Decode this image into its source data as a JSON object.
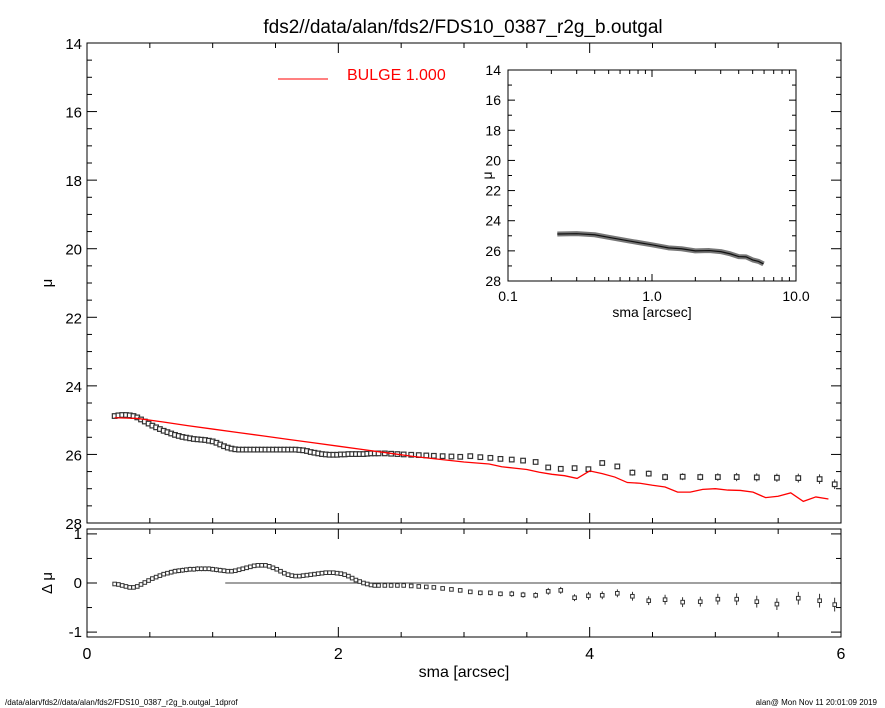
{
  "chart_data": [
    {
      "panel": "main",
      "type": "scatter",
      "title": "fds2//data/alan/fds2/FDS10_0387_r2g_b.outgal",
      "xlabel": "",
      "ylabel": "μ",
      "xlim": [
        0,
        6
      ],
      "ylim": [
        28,
        14
      ],
      "y_axis_inverted": true,
      "yticks": [
        "14",
        "16",
        "18",
        "20",
        "22",
        "24",
        "26",
        "28"
      ],
      "legend": {
        "label": "BULGE  1.000",
        "color": "#ff0000",
        "position": "top-center"
      },
      "series": [
        {
          "marker": "square",
          "color": "#000000",
          "x": [
            0.22,
            0.25,
            0.28,
            0.31,
            0.34,
            0.37,
            0.4,
            0.43,
            0.46,
            0.49,
            0.52,
            0.55,
            0.58,
            0.61,
            0.64,
            0.67,
            0.7,
            0.73,
            0.76,
            0.79,
            0.82,
            0.85,
            0.88,
            0.91,
            0.94,
            0.97,
            1.0,
            1.03,
            1.06,
            1.09,
            1.12,
            1.15,
            1.18,
            1.21,
            1.24,
            1.27,
            1.3,
            1.33,
            1.36,
            1.39,
            1.42,
            1.45,
            1.48,
            1.51,
            1.54,
            1.57,
            1.6,
            1.63,
            1.66,
            1.69,
            1.72,
            1.75,
            1.78,
            1.81,
            1.84,
            1.87,
            1.9,
            1.93,
            1.96,
            1.99,
            2.02,
            2.05,
            2.08,
            2.11,
            2.14,
            2.17,
            2.2,
            2.23,
            2.26,
            2.29,
            2.32,
            2.37,
            2.42,
            2.47,
            2.52,
            2.58,
            2.64,
            2.7,
            2.76,
            2.83,
            2.9,
            2.97,
            3.05,
            3.13,
            3.21,
            3.29,
            3.38,
            3.47,
            3.57,
            3.67,
            3.77,
            3.88,
            3.99,
            4.1,
            4.22,
            4.34,
            4.47,
            4.6,
            4.74,
            4.88,
            5.02,
            5.17,
            5.33,
            5.49,
            5.66,
            5.83,
            5.95
          ],
          "y": [
            24.88,
            24.86,
            24.85,
            24.85,
            24.86,
            24.88,
            24.92,
            24.98,
            25.04,
            25.1,
            25.16,
            25.21,
            25.26,
            25.31,
            25.35,
            25.39,
            25.43,
            25.46,
            25.49,
            25.51,
            25.53,
            25.55,
            25.56,
            25.57,
            25.58,
            25.6,
            25.62,
            25.66,
            25.71,
            25.76,
            25.8,
            25.83,
            25.85,
            25.86,
            25.86,
            25.86,
            25.86,
            25.86,
            25.86,
            25.86,
            25.86,
            25.86,
            25.86,
            25.86,
            25.86,
            25.86,
            25.86,
            25.86,
            25.86,
            25.87,
            25.88,
            25.9,
            25.93,
            25.95,
            25.97,
            25.99,
            26.0,
            26.01,
            26.01,
            26.01,
            26.0,
            26.0,
            25.99,
            25.99,
            25.99,
            25.99,
            25.99,
            25.98,
            25.97,
            25.97,
            25.97,
            25.97,
            25.98,
            25.99,
            26.0,
            26.01,
            26.02,
            26.03,
            26.04,
            26.05,
            26.06,
            26.07,
            26.05,
            26.08,
            26.1,
            26.13,
            26.15,
            26.18,
            26.22,
            26.38,
            26.42,
            26.4,
            26.43,
            26.25,
            26.35,
            26.53,
            26.56,
            26.66,
            26.65,
            26.66,
            26.66,
            26.66,
            26.67,
            26.68,
            26.69,
            26.72,
            26.87
          ],
          "err": [
            0.02,
            0.02,
            0.02,
            0.02,
            0.02,
            0.02,
            0.02,
            0.02,
            0.02,
            0.02,
            0.02,
            0.02,
            0.02,
            0.02,
            0.02,
            0.02,
            0.02,
            0.02,
            0.02,
            0.02,
            0.02,
            0.02,
            0.02,
            0.02,
            0.02,
            0.02,
            0.02,
            0.02,
            0.02,
            0.02,
            0.02,
            0.02,
            0.02,
            0.02,
            0.02,
            0.02,
            0.02,
            0.02,
            0.02,
            0.02,
            0.02,
            0.02,
            0.02,
            0.02,
            0.02,
            0.02,
            0.02,
            0.02,
            0.02,
            0.02,
            0.02,
            0.02,
            0.02,
            0.02,
            0.02,
            0.02,
            0.02,
            0.02,
            0.02,
            0.02,
            0.02,
            0.02,
            0.02,
            0.02,
            0.02,
            0.02,
            0.02,
            0.02,
            0.02,
            0.02,
            0.02,
            0.03,
            0.03,
            0.03,
            0.03,
            0.03,
            0.03,
            0.03,
            0.03,
            0.04,
            0.04,
            0.04,
            0.04,
            0.05,
            0.05,
            0.05,
            0.06,
            0.06,
            0.06,
            0.07,
            0.07,
            0.07,
            0.08,
            0.08,
            0.08,
            0.09,
            0.09,
            0.1,
            0.1,
            0.1,
            0.11,
            0.12,
            0.12,
            0.12,
            0.13,
            0.14,
            0.14
          ]
        },
        {
          "name": "BULGE  1.000",
          "marker": "line",
          "color": "#ff0000",
          "x": [
            0.22,
            0.4,
            0.6,
            0.8,
            1.0,
            1.2,
            1.4,
            1.6,
            1.8,
            2.0,
            2.2,
            2.4,
            2.6,
            2.8,
            3.0,
            3.2,
            3.3,
            3.4,
            3.5,
            3.6,
            3.7,
            3.8,
            3.9,
            4.0,
            4.1,
            4.2,
            4.3,
            4.4,
            4.5,
            4.6,
            4.7,
            4.8,
            4.9,
            5.0,
            5.1,
            5.2,
            5.3,
            5.4,
            5.5,
            5.6,
            5.7,
            5.8,
            5.9
          ],
          "y": [
            24.93,
            24.95,
            25.05,
            25.16,
            25.26,
            25.36,
            25.46,
            25.56,
            25.66,
            25.76,
            25.86,
            25.96,
            26.06,
            26.14,
            26.22,
            26.28,
            26.36,
            26.4,
            26.44,
            26.52,
            26.58,
            26.62,
            26.7,
            26.48,
            26.56,
            26.66,
            26.82,
            26.84,
            26.9,
            26.95,
            27.1,
            27.1,
            27.02,
            27.0,
            27.04,
            27.05,
            27.1,
            27.26,
            27.22,
            27.12,
            27.37,
            27.24,
            27.3
          ]
        }
      ]
    },
    {
      "panel": "inset",
      "type": "line",
      "xlabel": "sma [arcsec]",
      "ylabel": "μ",
      "x_scale": "log",
      "xlim": [
        0.1,
        10.0
      ],
      "ylim": [
        28,
        14
      ],
      "y_axis_inverted": true,
      "xticks": [
        "0.1",
        "1.0",
        "10.0"
      ],
      "yticks": [
        "14",
        "16",
        "18",
        "20",
        "22",
        "24",
        "26",
        "28"
      ],
      "series": [
        {
          "marker": "line",
          "color": "#000000",
          "x": [
            0.22,
            0.3,
            0.4,
            0.5,
            0.7,
            1.0,
            1.3,
            1.6,
            2.0,
            2.5,
            3.0,
            3.5,
            4.0,
            4.5,
            5.0,
            5.5,
            5.95
          ],
          "y": [
            24.88,
            24.86,
            24.93,
            25.1,
            25.35,
            25.6,
            25.8,
            25.86,
            26.0,
            25.98,
            26.05,
            26.2,
            26.38,
            26.4,
            26.6,
            26.7,
            26.87
          ]
        }
      ]
    },
    {
      "panel": "residual",
      "type": "scatter",
      "xlabel": "sma [arcsec]",
      "ylabel": "Δ μ",
      "xlim": [
        0,
        6
      ],
      "ylim": [
        -1.1,
        1.1
      ],
      "xticks": [
        "0",
        "2",
        "4",
        "6"
      ],
      "yticks": [
        "1",
        "0",
        "-1"
      ],
      "series": [
        {
          "marker": "square",
          "color": "#000000",
          "x": [
            0.22,
            0.25,
            0.28,
            0.31,
            0.34,
            0.37,
            0.4,
            0.43,
            0.46,
            0.49,
            0.52,
            0.55,
            0.58,
            0.61,
            0.64,
            0.67,
            0.7,
            0.73,
            0.76,
            0.79,
            0.82,
            0.85,
            0.88,
            0.91,
            0.94,
            0.97,
            1.0,
            1.03,
            1.06,
            1.09,
            1.12,
            1.15,
            1.18,
            1.21,
            1.24,
            1.27,
            1.3,
            1.33,
            1.36,
            1.39,
            1.42,
            1.45,
            1.48,
            1.51,
            1.54,
            1.57,
            1.6,
            1.63,
            1.66,
            1.69,
            1.72,
            1.75,
            1.78,
            1.81,
            1.84,
            1.87,
            1.9,
            1.93,
            1.96,
            1.99,
            2.02,
            2.05,
            2.08,
            2.11,
            2.14,
            2.17,
            2.2,
            2.23,
            2.26,
            2.29,
            2.32,
            2.37,
            2.42,
            2.47,
            2.52,
            2.58,
            2.64,
            2.7,
            2.76,
            2.83,
            2.9,
            2.97,
            3.05,
            3.13,
            3.21,
            3.29,
            3.38,
            3.47,
            3.57,
            3.67,
            3.77,
            3.88,
            3.99,
            4.1,
            4.22,
            4.34,
            4.47,
            4.6,
            4.74,
            4.88,
            5.02,
            5.17,
            5.33,
            5.49,
            5.66,
            5.83,
            5.95
          ],
          "y": [
            -0.02,
            -0.03,
            -0.05,
            -0.07,
            -0.09,
            -0.09,
            -0.07,
            -0.03,
            0.01,
            0.05,
            0.09,
            0.12,
            0.15,
            0.18,
            0.2,
            0.22,
            0.24,
            0.25,
            0.26,
            0.27,
            0.28,
            0.28,
            0.29,
            0.29,
            0.29,
            0.29,
            0.28,
            0.27,
            0.26,
            0.25,
            0.24,
            0.24,
            0.25,
            0.27,
            0.29,
            0.31,
            0.33,
            0.35,
            0.36,
            0.36,
            0.36,
            0.34,
            0.31,
            0.28,
            0.24,
            0.2,
            0.17,
            0.15,
            0.14,
            0.14,
            0.15,
            0.16,
            0.17,
            0.18,
            0.19,
            0.2,
            0.21,
            0.21,
            0.21,
            0.2,
            0.19,
            0.17,
            0.14,
            0.1,
            0.06,
            0.03,
            0.0,
            -0.02,
            -0.04,
            -0.05,
            -0.05,
            -0.05,
            -0.05,
            -0.05,
            -0.05,
            -0.06,
            -0.07,
            -0.08,
            -0.09,
            -0.11,
            -0.13,
            -0.15,
            -0.18,
            -0.2,
            -0.2,
            -0.22,
            -0.22,
            -0.24,
            -0.25,
            -0.17,
            -0.15,
            -0.3,
            -0.26,
            -0.25,
            -0.21,
            -0.27,
            -0.36,
            -0.34,
            -0.39,
            -0.38,
            -0.33,
            -0.33,
            -0.38,
            -0.43,
            -0.31,
            -0.36,
            -0.44
          ],
          "err": [
            0.02,
            0.02,
            0.02,
            0.02,
            0.02,
            0.02,
            0.02,
            0.03,
            0.03,
            0.03,
            0.03,
            0.04,
            0.04,
            0.04,
            0.04,
            0.05,
            0.05,
            0.05,
            0.05,
            0.05,
            0.05,
            0.05,
            0.05,
            0.05,
            0.05,
            0.05,
            0.05,
            0.05,
            0.05,
            0.05,
            0.04,
            0.04,
            0.04,
            0.04,
            0.04,
            0.03,
            0.03,
            0.03,
            0.03,
            0.03,
            0.03,
            0.03,
            0.03,
            0.03,
            0.03,
            0.03,
            0.03,
            0.03,
            0.03,
            0.03,
            0.03,
            0.03,
            0.03,
            0.03,
            0.03,
            0.03,
            0.03,
            0.03,
            0.03,
            0.03,
            0.03,
            0.03,
            0.03,
            0.03,
            0.03,
            0.03,
            0.03,
            0.03,
            0.03,
            0.03,
            0.03,
            0.03,
            0.03,
            0.03,
            0.03,
            0.03,
            0.03,
            0.03,
            0.03,
            0.04,
            0.04,
            0.04,
            0.04,
            0.05,
            0.05,
            0.05,
            0.06,
            0.06,
            0.06,
            0.07,
            0.07,
            0.07,
            0.08,
            0.08,
            0.08,
            0.09,
            0.09,
            0.1,
            0.1,
            0.1,
            0.11,
            0.12,
            0.12,
            0.12,
            0.13,
            0.14,
            0.14
          ]
        }
      ],
      "zero_line": {
        "x_from": 1.1,
        "x_to": 6
      }
    }
  ],
  "footer": {
    "left": "/data/alan/fds2//data/alan/fds2/FDS10_0387_r2g_b.outgal_1dprof",
    "right": "alan@  Mon Nov 11 20:01:09 2019"
  }
}
